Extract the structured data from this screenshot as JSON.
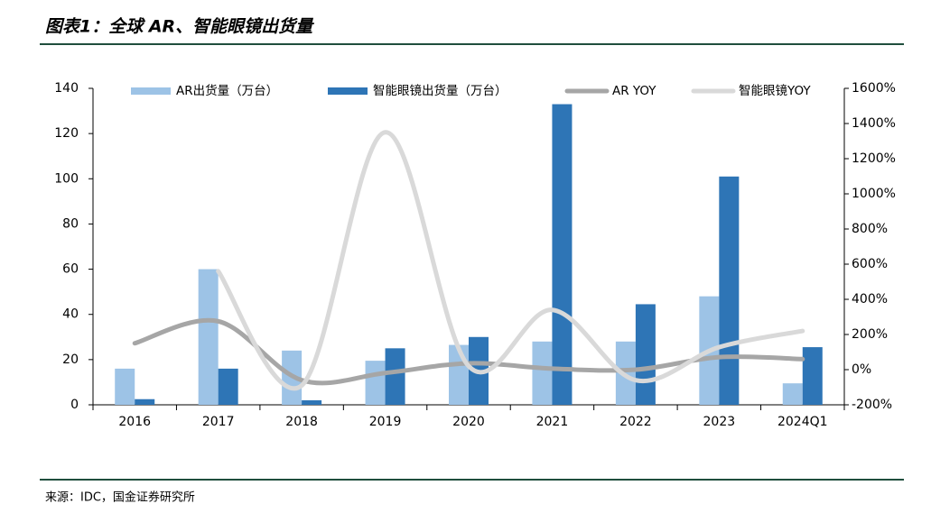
{
  "title": "图表1：全球 AR、智能眼镜出货量",
  "source": "来源：IDC，国金证券研究所",
  "chart_data": {
    "type": "bar_line",
    "categories": [
      "2016",
      "2017",
      "2018",
      "2019",
      "2020",
      "2021",
      "2022",
      "2023",
      "2024Q1"
    ],
    "series": [
      {
        "name": "AR出货量（万台）",
        "kind": "bar",
        "color": "#9dc3e6",
        "values": [
          16,
          60,
          24,
          19.5,
          26.5,
          28,
          28,
          48,
          9.5
        ]
      },
      {
        "name": "智能眼镜出货量（万台）",
        "kind": "bar",
        "color": "#2e75b6",
        "values": [
          2.5,
          16,
          2,
          25,
          30,
          133,
          44.5,
          101,
          25.5
        ]
      },
      {
        "name": "AR YOY",
        "kind": "line",
        "axis": "y2",
        "color": "#a6a6a6",
        "values": [
          150,
          275,
          -60,
          -19,
          36,
          6,
          0,
          71,
          60
        ]
      },
      {
        "name": "智能眼镜YOY",
        "kind": "line",
        "axis": "y2",
        "color": "#d9d9d9",
        "values": [
          null,
          560,
          -90,
          1350,
          20,
          340,
          -60,
          128,
          220
        ]
      }
    ],
    "ylim": [
      0,
      140
    ],
    "yticks": [
      0,
      20,
      40,
      60,
      80,
      100,
      120,
      140
    ],
    "y2lim": [
      -200,
      1600
    ],
    "y2ticks": [
      {
        "value": -200,
        "label": "-200%"
      },
      {
        "value": 0,
        "label": "0%"
      },
      {
        "value": 200,
        "label": "200%"
      },
      {
        "value": 400,
        "label": "400%"
      },
      {
        "value": 600,
        "label": "600%"
      },
      {
        "value": 800,
        "label": "800%"
      },
      {
        "value": 1000,
        "label": "1000%"
      },
      {
        "value": 1200,
        "label": "1200%"
      },
      {
        "value": 1400,
        "label": "1400%"
      },
      {
        "value": 1600,
        "label": "1600%"
      }
    ],
    "legend": "top",
    "grid": false
  }
}
